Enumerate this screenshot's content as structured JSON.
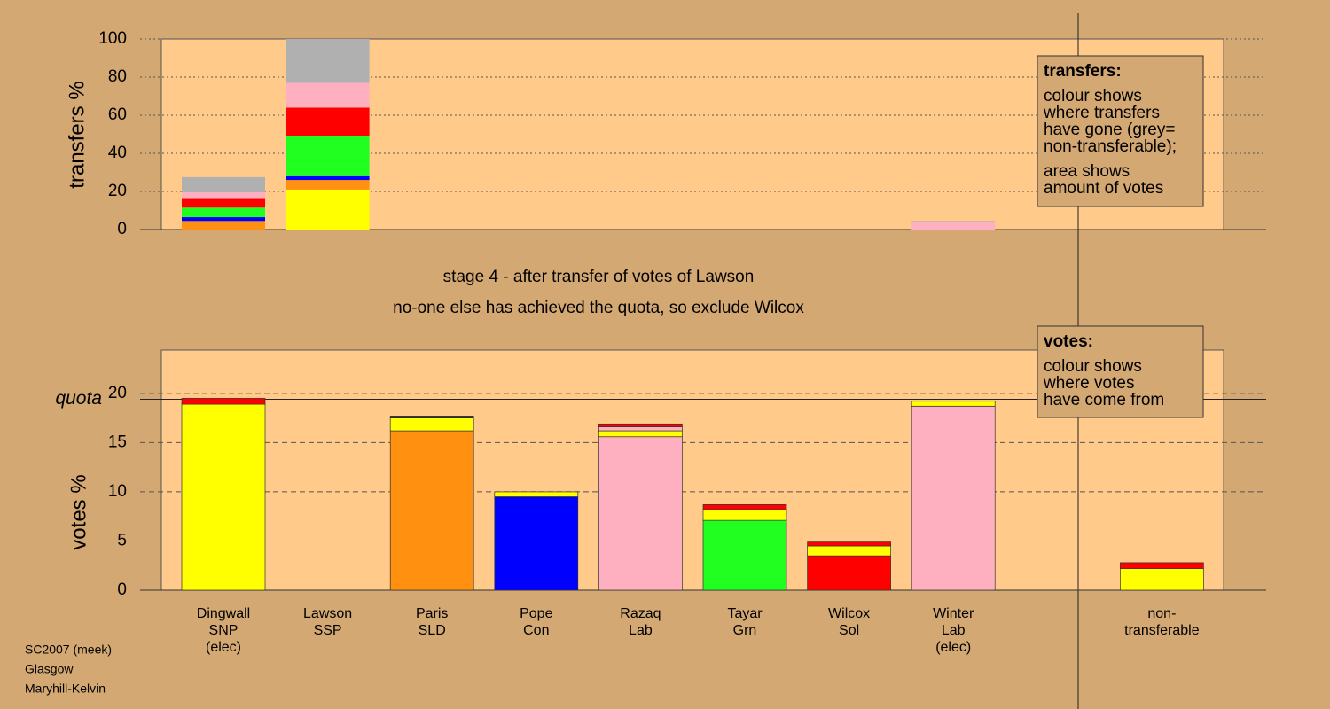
{
  "chart_data": [
    {
      "type": "bar",
      "stacked": true,
      "ylabel": "transfers %",
      "ylim": [
        0,
        100
      ],
      "yticks": [
        0,
        20,
        40,
        60,
        80,
        100
      ],
      "grid": true,
      "series": [
        {
          "color": "#ffff00",
          "values": [
            0,
            21,
            null,
            null,
            null,
            null,
            null,
            0,
            null
          ]
        },
        {
          "color": "#ff9010",
          "values": [
            4.5,
            5,
            null,
            null,
            null,
            null,
            null,
            0,
            null
          ]
        },
        {
          "color": "#0000ff",
          "values": [
            2,
            2,
            null,
            null,
            null,
            null,
            null,
            0,
            null
          ]
        },
        {
          "color": "#20ff20",
          "values": [
            5,
            21,
            null,
            null,
            null,
            null,
            null,
            0,
            null
          ]
        },
        {
          "color": "#ff0000",
          "values": [
            5,
            15,
            null,
            null,
            null,
            null,
            null,
            0,
            null
          ]
        },
        {
          "color": "#ffb0c0",
          "values": [
            3,
            13,
            null,
            null,
            null,
            null,
            null,
            4,
            null
          ]
        },
        {
          "color": "#b0b0b0",
          "values": [
            8,
            23,
            null,
            null,
            null,
            null,
            null,
            0.5,
            null
          ]
        }
      ],
      "annotation": {
        "title": "transfers:",
        "lines": [
          "colour shows",
          "where transfers",
          "have gone (grey=",
          "non-transferable);",
          "area shows",
          "amount of votes"
        ]
      }
    },
    {
      "type": "bar",
      "stacked": true,
      "ylabel": "votes %",
      "title": "stage 4 - after transfer of votes of Lawson",
      "subtitle": "no-one else has achieved the quota, so exclude Wilcox",
      "categories": [
        [
          "Dingwall",
          "SNP",
          "(elec)"
        ],
        [
          "Lawson",
          "SSP"
        ],
        [
          "Paris",
          "SLD"
        ],
        [
          "Pope",
          "Con"
        ],
        [
          "Razaq",
          "Lab"
        ],
        [
          "Tayar",
          "Grn"
        ],
        [
          "Wilcox",
          "Sol"
        ],
        [
          "Winter",
          "Lab",
          "(elec)"
        ],
        [
          "non-",
          "transferable"
        ]
      ],
      "ylim": [
        0,
        24.4
      ],
      "yticks": [
        0,
        5,
        10,
        15,
        20
      ],
      "grid": true,
      "quota": {
        "value": 19.4,
        "label": "quota"
      },
      "series": [
        {
          "colors": [
            "#ffff00",
            "#ffff00",
            "#ff9010",
            "#0000ff",
            "#ffb0c0",
            "#20ff20",
            "#ff0000",
            "#ffb0c0",
            "#ffff00"
          ],
          "values": [
            18.9,
            0,
            16.2,
            9.5,
            15.6,
            7.1,
            3.5,
            18.7,
            2.2
          ]
        },
        {
          "color": "#ffff00",
          "values": [
            0,
            0,
            1.3,
            0.5,
            0.6,
            1.1,
            1.0,
            0.5,
            0
          ]
        },
        {
          "color": "#ffb0c0",
          "values": [
            0,
            0,
            0,
            0,
            0.4,
            0,
            0,
            0,
            0
          ]
        },
        {
          "color": "#ff0000",
          "values": [
            0.6,
            0,
            0,
            0,
            0.3,
            0.5,
            0.4,
            0,
            0.6
          ]
        },
        {
          "color": "#222222",
          "values": [
            0,
            0,
            0.2,
            0,
            0,
            0,
            0,
            0,
            0
          ]
        }
      ],
      "annotation": {
        "title": "votes:",
        "lines": [
          "colour shows",
          "where votes",
          "have come from"
        ]
      }
    }
  ],
  "footer": [
    "SC2007 (meek)",
    "Glasgow",
    "Maryhill-Kelvin"
  ]
}
